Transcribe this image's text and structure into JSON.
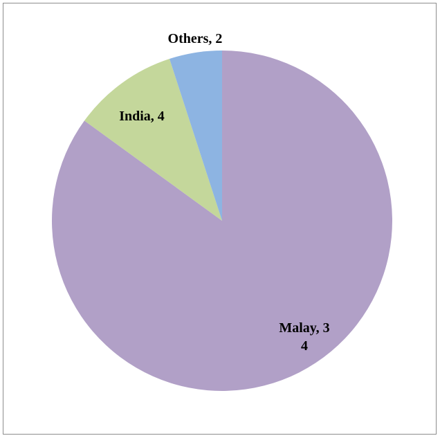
{
  "chart_data": {
    "type": "pie",
    "title": "",
    "slices": [
      {
        "label": "Malay",
        "value": 34,
        "color": "#b1a0c7",
        "label_lines": [
          "Malay, 3",
          "4"
        ]
      },
      {
        "label": "India",
        "value": 4,
        "color": "#c4d79b",
        "label_lines": [
          "India, 4"
        ]
      },
      {
        "label": "Others",
        "value": 2,
        "color": "#8db4e2",
        "label_lines": [
          "Others, 2"
        ]
      }
    ],
    "start_angle": "12 o'clock",
    "direction": "clockwise",
    "legend": "none"
  }
}
